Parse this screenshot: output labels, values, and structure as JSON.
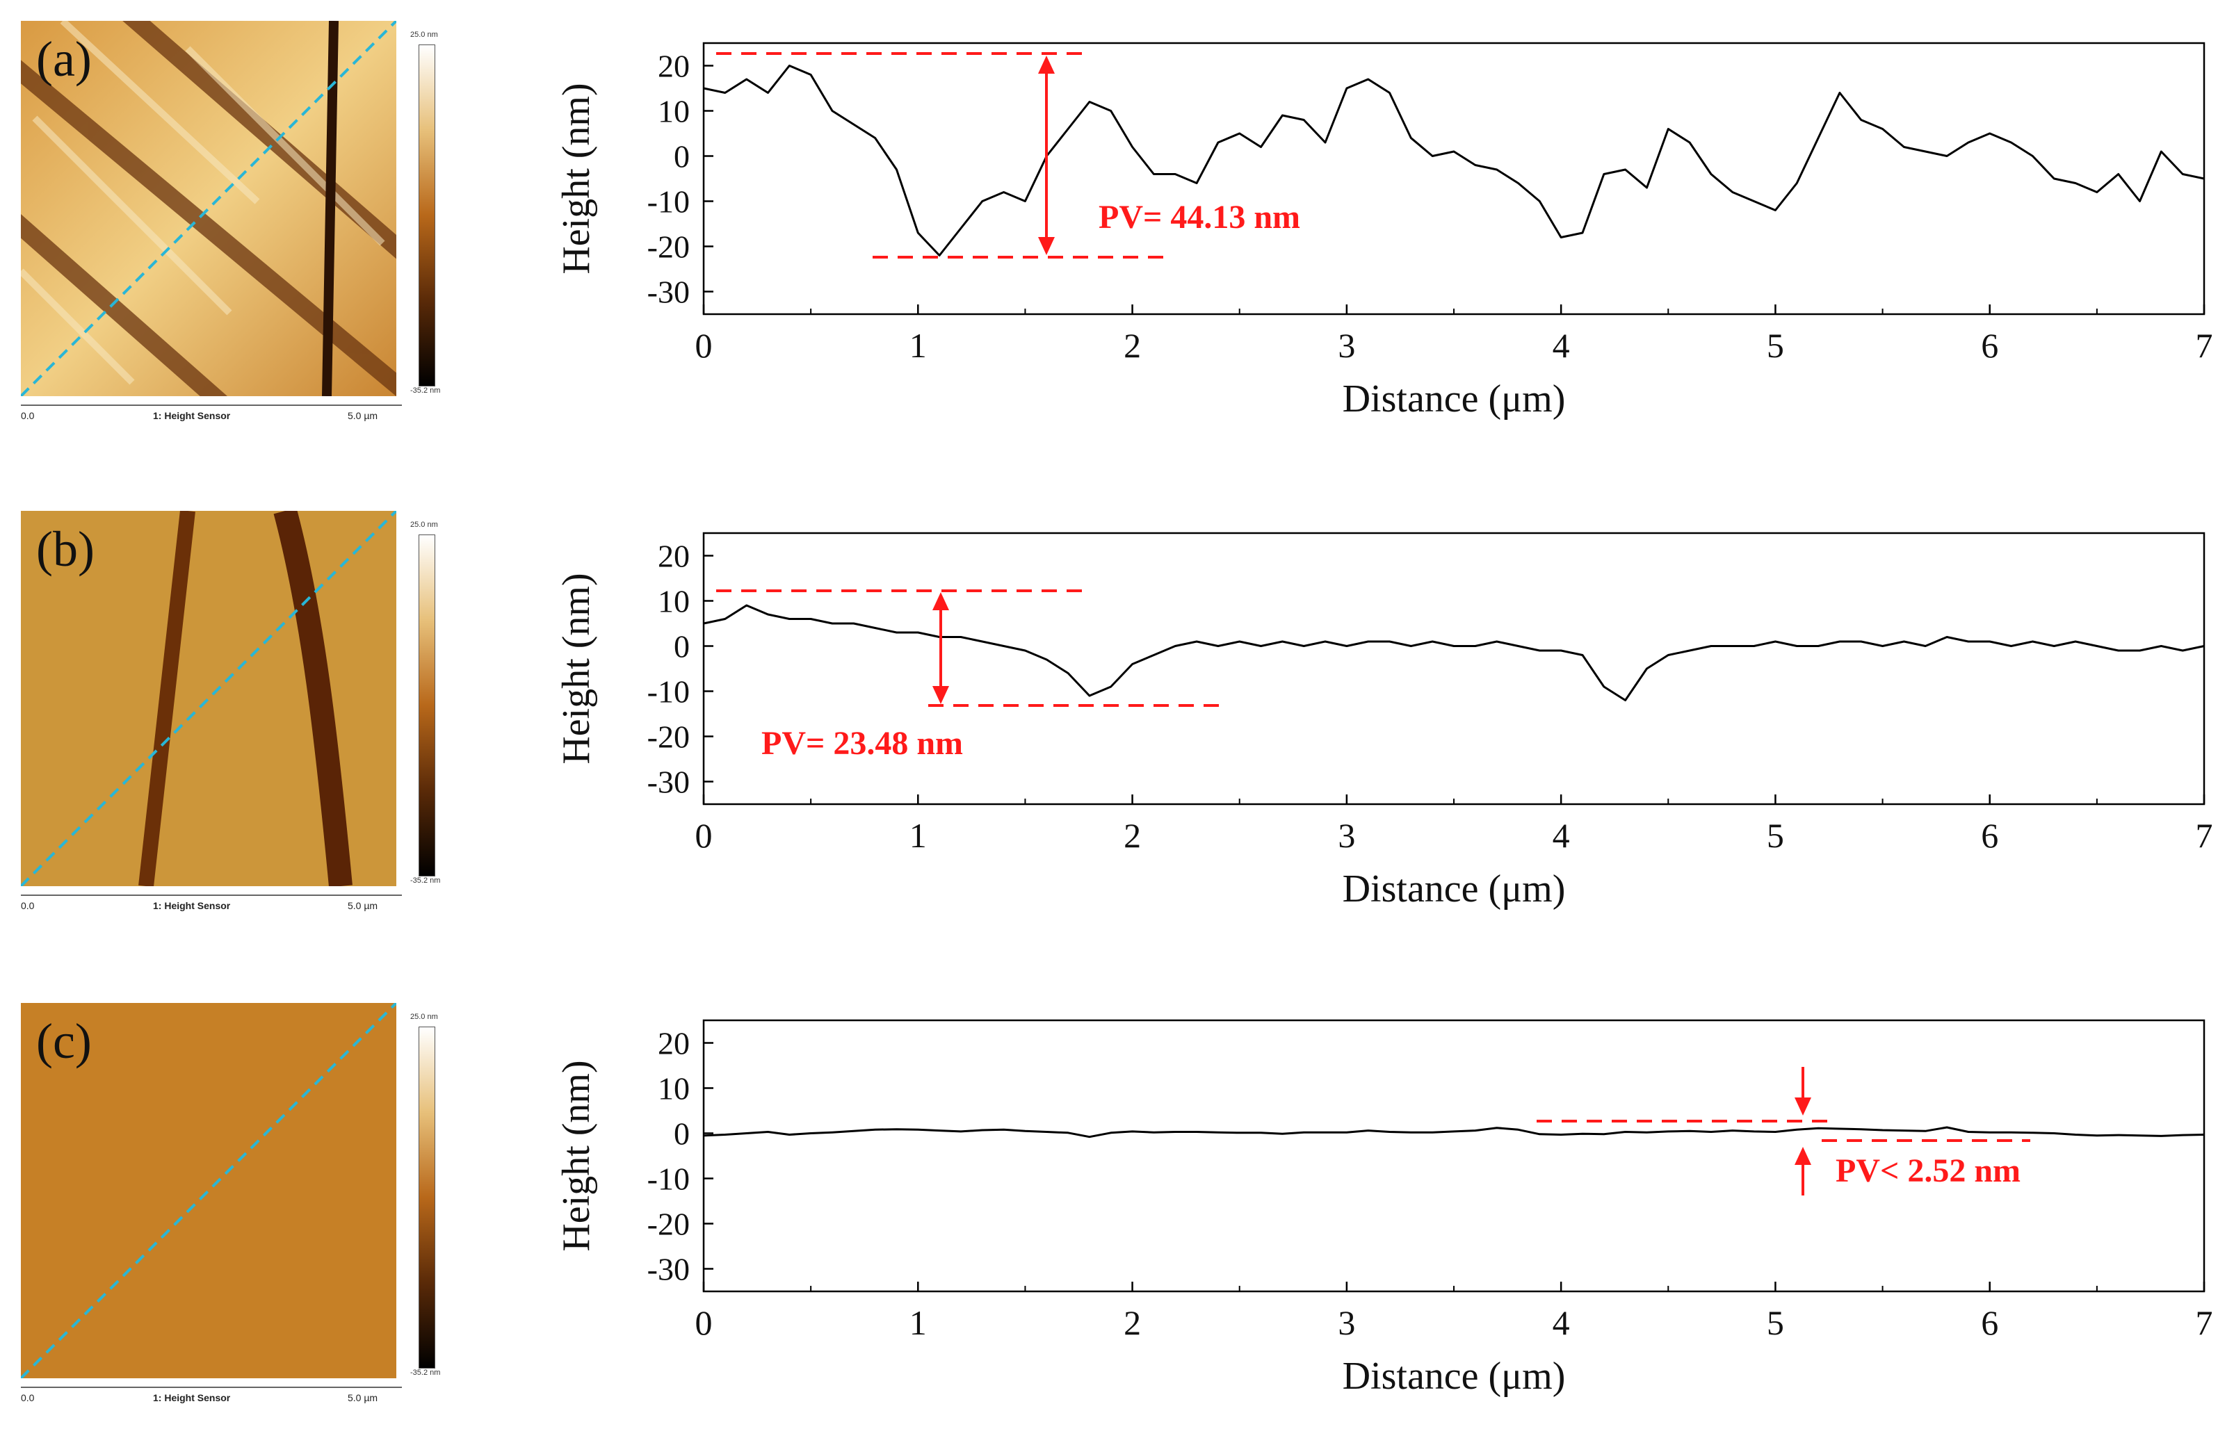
{
  "chart_data": [
    {
      "type": "line",
      "panel": "(a)",
      "xlabel": "Distance (μm)",
      "ylabel": "Height (nm)",
      "xlim": [
        0,
        7
      ],
      "ylim": [
        -35,
        25
      ],
      "xticks": [
        "0",
        "1",
        "2",
        "3",
        "4",
        "5",
        "6",
        "7"
      ],
      "yticks": [
        "20",
        "10",
        "0",
        "-10",
        "-20",
        "-30"
      ],
      "x": [
        0,
        0.1,
        0.2,
        0.3,
        0.4,
        0.5,
        0.6,
        0.7,
        0.8,
        0.9,
        1.0,
        1.1,
        1.2,
        1.3,
        1.4,
        1.5,
        1.6,
        1.7,
        1.8,
        1.9,
        2.0,
        2.1,
        2.2,
        2.3,
        2.4,
        2.5,
        2.6,
        2.7,
        2.8,
        2.9,
        3.0,
        3.1,
        3.2,
        3.3,
        3.4,
        3.5,
        3.6,
        3.7,
        3.8,
        3.9,
        4.0,
        4.1,
        4.2,
        4.3,
        4.4,
        4.5,
        4.6,
        4.7,
        4.8,
        4.9,
        5.0,
        5.1,
        5.2,
        5.3,
        5.4,
        5.5,
        5.6,
        5.7,
        5.8,
        5.9,
        6.0,
        6.1,
        6.2,
        6.3,
        6.4,
        6.5,
        6.6,
        6.7,
        6.8,
        6.9,
        7.0
      ],
      "values": [
        15,
        14,
        17,
        14,
        20,
        18,
        10,
        7,
        4,
        -3,
        -17,
        -22,
        -16,
        -10,
        -8,
        -10,
        0,
        6,
        12,
        10,
        2,
        -4,
        -4,
        -6,
        3,
        5,
        2,
        9,
        8,
        3,
        15,
        17,
        14,
        4,
        0,
        1,
        -2,
        -3,
        -6,
        -10,
        -18,
        -17,
        -4,
        -3,
        -7,
        6,
        3,
        -4,
        -8,
        -10,
        -12,
        -6,
        4,
        14,
        8,
        6,
        2,
        1,
        0,
        3,
        5,
        3,
        0,
        -5,
        -6,
        -8,
        -4,
        -10,
        1,
        -4,
        -5
      ],
      "annotation": "PV= 44.13 nm"
    },
    {
      "type": "line",
      "panel": "(b)",
      "xlabel": "Distance (μm)",
      "ylabel": "Height (nm)",
      "xlim": [
        0,
        7
      ],
      "ylim": [
        -35,
        25
      ],
      "xticks": [
        "0",
        "1",
        "2",
        "3",
        "4",
        "5",
        "6",
        "7"
      ],
      "yticks": [
        "20",
        "10",
        "0",
        "-10",
        "-20",
        "-30"
      ],
      "x": [
        0,
        0.1,
        0.2,
        0.3,
        0.4,
        0.5,
        0.6,
        0.7,
        0.8,
        0.9,
        1.0,
        1.1,
        1.2,
        1.3,
        1.4,
        1.5,
        1.6,
        1.7,
        1.8,
        1.9,
        2.0,
        2.1,
        2.2,
        2.3,
        2.4,
        2.5,
        2.6,
        2.7,
        2.8,
        2.9,
        3.0,
        3.1,
        3.2,
        3.3,
        3.4,
        3.5,
        3.6,
        3.7,
        3.8,
        3.9,
        4.0,
        4.1,
        4.2,
        4.3,
        4.4,
        4.5,
        4.6,
        4.7,
        4.8,
        4.9,
        5.0,
        5.1,
        5.2,
        5.3,
        5.4,
        5.5,
        5.6,
        5.7,
        5.8,
        5.9,
        6.0,
        6.1,
        6.2,
        6.3,
        6.4,
        6.5,
        6.6,
        6.7,
        6.8,
        6.9,
        7.0
      ],
      "values": [
        5,
        6,
        9,
        7,
        6,
        6,
        5,
        5,
        4,
        3,
        3,
        2,
        2,
        1,
        0,
        -1,
        -3,
        -6,
        -11,
        -9,
        -4,
        -2,
        0,
        1,
        0,
        1,
        0,
        1,
        0,
        1,
        0,
        1,
        1,
        0,
        1,
        0,
        0,
        1,
        0,
        -1,
        -1,
        -2,
        -9,
        -12,
        -5,
        -2,
        -1,
        0,
        0,
        0,
        1,
        0,
        0,
        1,
        1,
        0,
        1,
        0,
        2,
        1,
        1,
        0,
        1,
        0,
        1,
        0,
        -1,
        -1,
        0,
        -1,
        0
      ],
      "annotation": "PV= 23.48 nm"
    },
    {
      "type": "line",
      "panel": "(c)",
      "xlabel": "Distance (μm)",
      "ylabel": "Height (nm)",
      "xlim": [
        0,
        7
      ],
      "ylim": [
        -35,
        25
      ],
      "xticks": [
        "0",
        "1",
        "2",
        "3",
        "4",
        "5",
        "6",
        "7"
      ],
      "yticks": [
        "20",
        "10",
        "0",
        "-10",
        "-20",
        "-30"
      ],
      "x": [
        0,
        0.1,
        0.2,
        0.3,
        0.4,
        0.5,
        0.6,
        0.7,
        0.8,
        0.9,
        1.0,
        1.1,
        1.2,
        1.3,
        1.4,
        1.5,
        1.6,
        1.7,
        1.8,
        1.9,
        2.0,
        2.1,
        2.2,
        2.3,
        2.4,
        2.5,
        2.6,
        2.7,
        2.8,
        2.9,
        3.0,
        3.1,
        3.2,
        3.3,
        3.4,
        3.5,
        3.6,
        3.7,
        3.8,
        3.9,
        4.0,
        4.1,
        4.2,
        4.3,
        4.4,
        4.5,
        4.6,
        4.7,
        4.8,
        4.9,
        5.0,
        5.1,
        5.2,
        5.3,
        5.4,
        5.5,
        5.6,
        5.7,
        5.8,
        5.9,
        6.0,
        6.1,
        6.2,
        6.3,
        6.4,
        6.5,
        6.6,
        6.7,
        6.8,
        6.9,
        7.0
      ],
      "values": [
        -0.5,
        -0.3,
        0,
        0.3,
        -0.3,
        0,
        0.2,
        0.5,
        0.8,
        0.9,
        0.8,
        0.6,
        0.4,
        0.7,
        0.8,
        0.5,
        0.3,
        0.1,
        -0.8,
        0.1,
        0.4,
        0.2,
        0.3,
        0.3,
        0.2,
        0.1,
        0.1,
        -0.1,
        0.2,
        0.2,
        0.2,
        0.6,
        0.3,
        0.2,
        0.2,
        0.4,
        0.6,
        1.2,
        0.8,
        -0.2,
        -0.3,
        -0.1,
        -0.2,
        0.3,
        0.2,
        0.4,
        0.5,
        0.3,
        0.6,
        0.4,
        0.3,
        0.8,
        1.1,
        1.0,
        0.9,
        0.7,
        0.6,
        0.5,
        1.3,
        0.3,
        0.2,
        0.2,
        0.1,
        0,
        -0.3,
        -0.5,
        -0.4,
        -0.5,
        -0.6,
        -0.4,
        -0.3
      ],
      "annotation": "PV< 2.52 nm"
    }
  ],
  "afm_panels": [
    {
      "label": "(a)",
      "scale_top": "25.0 nm",
      "scale_bottom": "-35.2 nm",
      "axis_left": "0.0",
      "channel": "1: Height Sensor",
      "axis_right": "5.0 µm"
    },
    {
      "label": "(b)",
      "scale_top": "25.0 nm",
      "scale_bottom": "-35.2 nm",
      "axis_left": "0.0",
      "channel": "1: Height Sensor",
      "axis_right": "5.0 µm"
    },
    {
      "label": "(c)",
      "scale_top": "25.0 nm",
      "scale_bottom": "-35.2 nm",
      "axis_left": "0.0",
      "channel": "1: Height Sensor",
      "axis_right": "5.0 µm"
    }
  ],
  "colors": {
    "annotation": "#ff1a1a",
    "profile_line": "#000000",
    "scan_line": "#29b6d6",
    "afm_a_light": "#f7e3b0",
    "afm_a_dark": "#5a2d08",
    "afm_b_base": "#c38a2c",
    "afm_c_base": "#c0781c"
  }
}
